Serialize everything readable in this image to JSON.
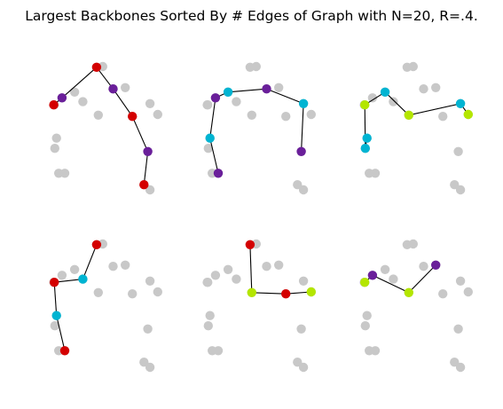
{
  "title": "Largest Backbones Sorted By # Edges of Graph with N=20, R=.4.",
  "colors": {
    "background_node": "#c8c8c8",
    "edge": "#000000",
    "red": "#d40000",
    "purple": "#6a1f9a",
    "cyan": "#00b4d2",
    "lime": "#b4e600"
  },
  "chart_data": {
    "type": "scatter",
    "graph": {
      "N": 20,
      "R": 0.4
    },
    "axes_visible": false,
    "nodes": [
      {
        "id": 0,
        "x": 0.05,
        "y": 0.665
      },
      {
        "id": 1,
        "x": 0.12,
        "y": 0.72
      },
      {
        "id": 2,
        "x": 0.235,
        "y": 0.765
      },
      {
        "id": 3,
        "x": 0.31,
        "y": 0.69
      },
      {
        "id": 4,
        "x": 0.435,
        "y": 0.96
      },
      {
        "id": 5,
        "x": 0.49,
        "y": 0.965
      },
      {
        "id": 6,
        "x": 0.585,
        "y": 0.79
      },
      {
        "id": 7,
        "x": 0.695,
        "y": 0.8
      },
      {
        "id": 8,
        "x": 0.45,
        "y": 0.585
      },
      {
        "id": 9,
        "x": 0.76,
        "y": 0.575
      },
      {
        "id": 10,
        "x": 0.92,
        "y": 0.675
      },
      {
        "id": 11,
        "x": 0.99,
        "y": 0.59
      },
      {
        "id": 12,
        "x": 0.07,
        "y": 0.405
      },
      {
        "id": 13,
        "x": 0.055,
        "y": 0.325
      },
      {
        "id": 14,
        "x": 0.09,
        "y": 0.13
      },
      {
        "id": 15,
        "x": 0.145,
        "y": 0.13
      },
      {
        "id": 16,
        "x": 0.9,
        "y": 0.3
      },
      {
        "id": 17,
        "x": 0.865,
        "y": 0.04
      },
      {
        "id": 18,
        "x": 0.92,
        "y": 0.0
      },
      {
        "id": 19,
        "x": 0.045,
        "y": 0.665
      }
    ],
    "panels": [
      {
        "path": [
          19,
          1,
          4,
          6,
          9,
          16,
          17
        ],
        "colors": [
          "red",
          "purple",
          "red",
          "purple",
          "red",
          "purple",
          "red"
        ]
      },
      {
        "path": [
          15,
          12,
          1,
          2,
          6,
          10,
          16
        ],
        "colors": [
          "purple",
          "cyan",
          "purple",
          "cyan",
          "purple",
          "cyan",
          "purple"
        ]
      },
      {
        "path": [
          12,
          13,
          0,
          2,
          8,
          10,
          11
        ],
        "colors": [
          "cyan",
          "cyan",
          "lime",
          "cyan",
          "lime",
          "cyan",
          "lime"
        ]
      },
      {
        "path": [
          4,
          3,
          0,
          12,
          15
        ],
        "colors": [
          "red",
          "cyan",
          "red",
          "cyan",
          "red"
        ]
      },
      {
        "path": [
          4,
          8,
          9,
          11
        ],
        "colors": [
          "red",
          "lime",
          "red",
          "lime"
        ]
      },
      {
        "path": [
          0,
          1,
          8,
          7
        ],
        "colors": [
          "lime",
          "purple",
          "lime",
          "purple"
        ]
      }
    ]
  }
}
